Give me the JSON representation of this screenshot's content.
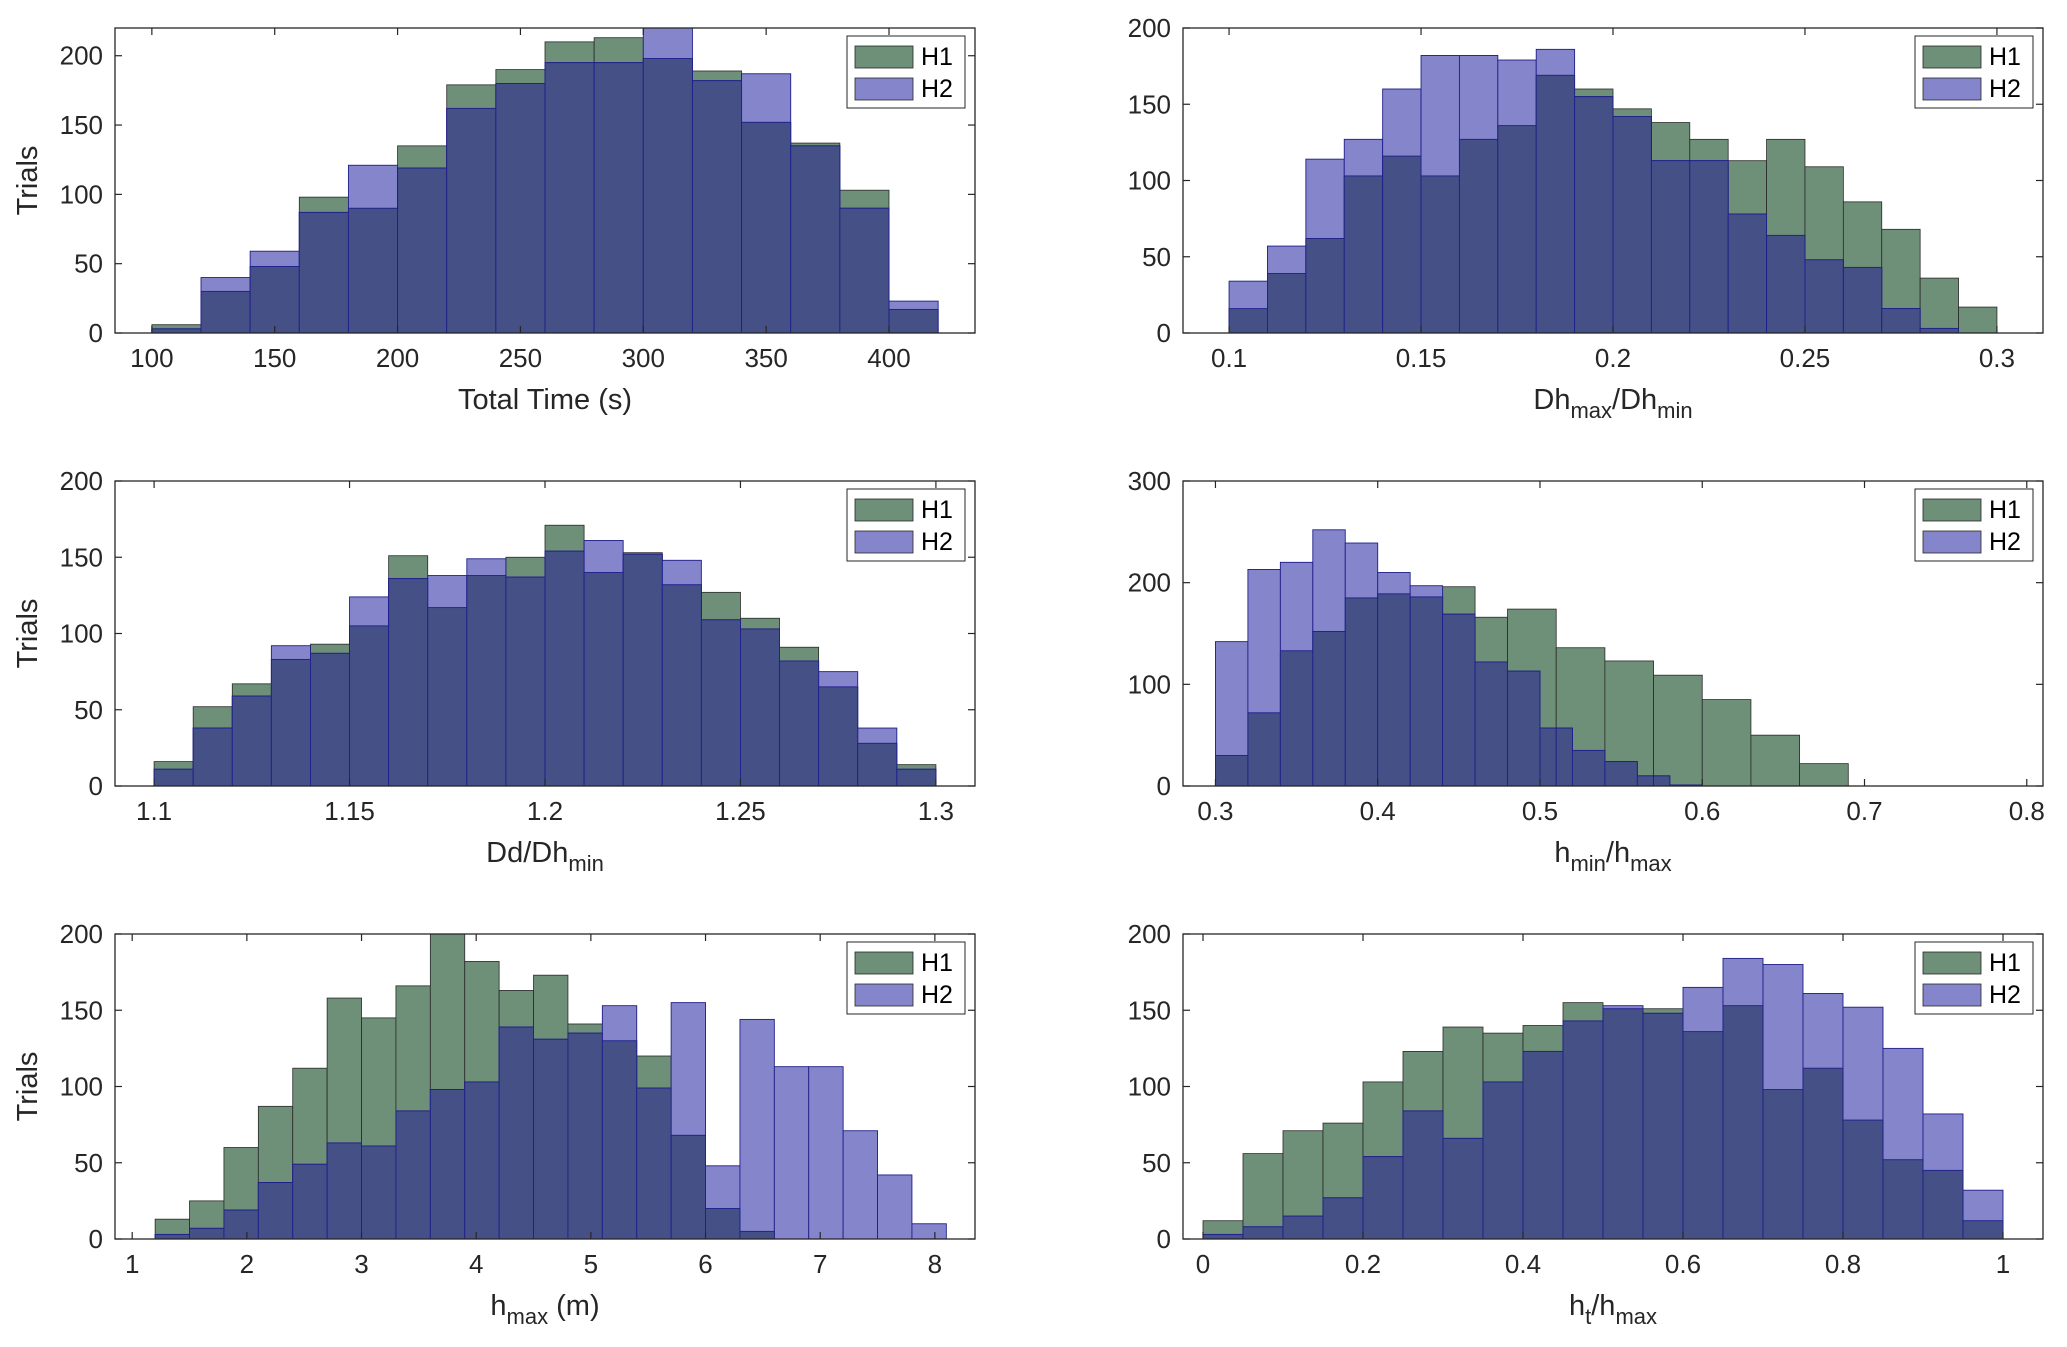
{
  "colors": {
    "h1_fill": "#6e8f78",
    "h2_fill": "#8585cc",
    "overlap_fill": "#445086",
    "edge": "#1f1f8a"
  },
  "chart_data": [
    {
      "type": "bar",
      "title": "",
      "xlabel": "Total Time (s)",
      "ylabel": "Trials",
      "xlim": [
        85,
        435
      ],
      "ylim": [
        0,
        220
      ],
      "xticks": [
        100,
        150,
        200,
        250,
        300,
        350,
        400
      ],
      "xtick_labels": [
        "100",
        "150",
        "200",
        "250",
        "300",
        "350",
        "400"
      ],
      "yticks": [
        0,
        50,
        100,
        150,
        200
      ],
      "ytick_labels": [
        "0",
        "50",
        "100",
        "150",
        "200"
      ],
      "bin_start": 100,
      "bin_width": 20,
      "legend": [
        "H1",
        "H2"
      ],
      "legend_position": "top-right",
      "series": [
        {
          "name": "H1",
          "values": [
            6,
            30,
            48,
            98,
            90,
            135,
            179,
            190,
            210,
            213,
            198,
            189,
            152,
            137,
            103,
            17
          ]
        },
        {
          "name": "H2",
          "values": [
            3,
            40,
            59,
            87,
            121,
            119,
            162,
            180,
            195,
            195,
            220,
            182,
            187,
            135,
            90,
            23
          ]
        }
      ]
    },
    {
      "type": "bar",
      "title": "",
      "xlabel": {
        "base": "Dh",
        "sub1": "max",
        "mid": "/Dh",
        "sub2": "min"
      },
      "ylabel": "",
      "xlim": [
        0.088,
        0.312
      ],
      "ylim": [
        0,
        200
      ],
      "xticks": [
        0.1,
        0.15,
        0.2,
        0.25,
        0.3
      ],
      "xtick_labels": [
        "0.1",
        "0.15",
        "0.2",
        "0.25",
        "0.3"
      ],
      "yticks": [
        0,
        50,
        100,
        150,
        200
      ],
      "ytick_labels": [
        "0",
        "50",
        "100",
        "150",
        "200"
      ],
      "bin_start": 0.1,
      "bin_width": 0.01,
      "legend": [
        "H1",
        "H2"
      ],
      "legend_position": "top-right",
      "series": [
        {
          "name": "H1",
          "values": [
            16,
            39,
            62,
            103,
            116,
            103,
            127,
            136,
            169,
            160,
            147,
            138,
            127,
            113,
            127,
            109,
            86,
            68,
            36,
            17
          ]
        },
        {
          "name": "H2",
          "values": [
            34,
            57,
            114,
            127,
            160,
            182,
            182,
            179,
            186,
            155,
            142,
            113,
            113,
            78,
            64,
            48,
            43,
            16,
            3,
            0
          ]
        }
      ]
    },
    {
      "type": "bar",
      "title": "",
      "xlabel": {
        "base": "Dd/Dh",
        "sub1": "min"
      },
      "ylabel": "Trials",
      "xlim": [
        1.09,
        1.31
      ],
      "ylim": [
        0,
        200
      ],
      "xticks": [
        1.1,
        1.15,
        1.2,
        1.25,
        1.3
      ],
      "xtick_labels": [
        "1.1",
        "1.15",
        "1.2",
        "1.25",
        "1.3"
      ],
      "yticks": [
        0,
        50,
        100,
        150,
        200
      ],
      "ytick_labels": [
        "0",
        "50",
        "100",
        "150",
        "200"
      ],
      "bin_start": 1.1,
      "bin_width": 0.01,
      "legend": [
        "H1",
        "H2"
      ],
      "legend_position": "top-right",
      "series": [
        {
          "name": "H1",
          "values": [
            16,
            52,
            67,
            83,
            93,
            105,
            151,
            117,
            138,
            150,
            171,
            140,
            153,
            132,
            127,
            110,
            91,
            65,
            28,
            14
          ]
        },
        {
          "name": "H2",
          "values": [
            11,
            38,
            59,
            92,
            87,
            124,
            136,
            138,
            149,
            137,
            154,
            161,
            152,
            148,
            109,
            103,
            82,
            75,
            38,
            11
          ]
        }
      ]
    },
    {
      "type": "bar",
      "title": "",
      "xlabel": {
        "base": "h",
        "sub1": "min",
        "mid": "/h",
        "sub2": "max"
      },
      "ylabel": "",
      "xlim": [
        0.28,
        0.81
      ],
      "ylim": [
        0,
        300
      ],
      "xticks": [
        0.3,
        0.4,
        0.5,
        0.6,
        0.7,
        0.8
      ],
      "xtick_labels": [
        "0.3",
        "0.4",
        "0.5",
        "0.6",
        "0.7",
        "0.8"
      ],
      "yticks": [
        0,
        100,
        200,
        300
      ],
      "ytick_labels": [
        "0",
        "100",
        "200",
        "300"
      ],
      "legend": [
        "H1",
        "H2"
      ],
      "legend_position": "top-right",
      "series": [
        {
          "name": "H1",
          "edges": [
            0.3,
            0.32,
            0.34,
            0.36,
            0.38,
            0.4,
            0.42,
            0.44,
            0.46,
            0.48,
            0.51,
            0.54,
            0.57,
            0.6,
            0.63,
            0.66,
            0.69,
            0.72,
            0.75,
            0.78
          ],
          "values": [
            30,
            72,
            133,
            152,
            185,
            189,
            186,
            196,
            166,
            174,
            136,
            123,
            109,
            85,
            50,
            22,
            0,
            0,
            0
          ]
        },
        {
          "name": "H2",
          "edges": [
            0.3,
            0.32,
            0.34,
            0.36,
            0.38,
            0.4,
            0.42,
            0.44,
            0.46,
            0.48,
            0.5,
            0.52,
            0.54,
            0.56,
            0.58,
            0.6
          ],
          "values": [
            142,
            213,
            220,
            252,
            239,
            210,
            197,
            169,
            122,
            113,
            57,
            35,
            24,
            10,
            1
          ]
        }
      ]
    },
    {
      "type": "bar",
      "title": "",
      "xlabel": {
        "base": "h",
        "sub1": "max",
        "mid": " (m)"
      },
      "ylabel": "Trials",
      "xlim": [
        0.85,
        8.35
      ],
      "ylim": [
        0,
        200
      ],
      "xticks": [
        1,
        2,
        3,
        4,
        5,
        6,
        7,
        8
      ],
      "xtick_labels": [
        "1",
        "2",
        "3",
        "4",
        "5",
        "6",
        "7",
        "8"
      ],
      "yticks": [
        0,
        50,
        100,
        150,
        200
      ],
      "ytick_labels": [
        "0",
        "50",
        "100",
        "150",
        "200"
      ],
      "bin_start": 1.2,
      "bin_width": 0.3,
      "legend": [
        "H1",
        "H2"
      ],
      "legend_position": "top-right",
      "series": [
        {
          "name": "H1",
          "values": [
            13,
            25,
            60,
            87,
            112,
            158,
            145,
            166,
            201,
            182,
            163,
            173,
            141,
            130,
            120,
            68,
            20,
            5,
            0,
            0,
            0,
            0,
            0
          ]
        },
        {
          "name": "H2",
          "values": [
            3,
            7,
            19,
            37,
            49,
            63,
            61,
            84,
            98,
            103,
            139,
            131,
            135,
            153,
            99,
            155,
            48,
            144,
            113,
            113,
            71,
            42,
            10
          ]
        }
      ]
    },
    {
      "type": "bar",
      "title": "",
      "xlabel": {
        "base": "h",
        "sub1": "t",
        "mid": "/h",
        "sub2": "max"
      },
      "ylabel": "",
      "xlim": [
        -0.025,
        1.05
      ],
      "ylim": [
        0,
        200
      ],
      "xticks": [
        0,
        0.2,
        0.4,
        0.6,
        0.8,
        1
      ],
      "xtick_labels": [
        "0",
        "0.2",
        "0.4",
        "0.6",
        "0.8",
        "1"
      ],
      "yticks": [
        0,
        50,
        100,
        150,
        200
      ],
      "ytick_labels": [
        "0",
        "50",
        "100",
        "150",
        "200"
      ],
      "bin_start": 0,
      "bin_width": 0.05,
      "legend": [
        "H1",
        "H2"
      ],
      "legend_position": "top-right",
      "series": [
        {
          "name": "H1",
          "values": [
            12,
            56,
            71,
            76,
            103,
            123,
            139,
            135,
            140,
            155,
            151,
            151,
            136,
            153,
            98,
            112,
            78,
            52,
            45,
            12
          ]
        },
        {
          "name": "H2",
          "values": [
            3,
            8,
            15,
            27,
            54,
            84,
            66,
            103,
            123,
            143,
            153,
            148,
            165,
            184,
            180,
            161,
            152,
            125,
            82,
            32
          ]
        }
      ]
    }
  ]
}
